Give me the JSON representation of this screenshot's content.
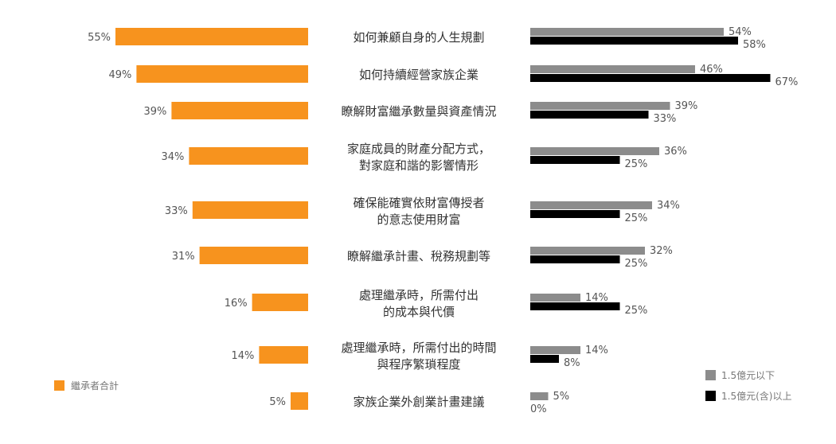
{
  "chart_data": {
    "type": "bar",
    "categories": [
      [
        "如何兼顧自身的人生規劃"
      ],
      [
        "如何持續經營家族企業"
      ],
      [
        "瞭解財富繼承數量與資產情況"
      ],
      [
        "家庭成員的財產分配方式，",
        "對家庭和諧的影響情形"
      ],
      [
        "確保能確實依財富傳授者",
        "的意志使用財富"
      ],
      [
        "瞭解繼承計畫、稅務規劃等"
      ],
      [
        "處理繼承時，所需付出",
        "的成本與代價"
      ],
      [
        "處理繼承時，所需付出的時間",
        "與程序繁瑣程度"
      ],
      [
        "家族企業外創業計畫建議"
      ]
    ],
    "series": [
      {
        "name": "繼承者合計",
        "color": "#F7931E",
        "values": [
          55,
          49,
          39,
          34,
          33,
          31,
          16,
          14,
          5
        ],
        "labels": [
          "55%",
          "49%",
          "39%",
          "34%",
          "33%",
          "31%",
          "16%",
          "14%",
          "5%"
        ]
      },
      {
        "name": "1.5億元以下",
        "color": "#8C8C8C",
        "values": [
          54,
          46,
          39,
          36,
          34,
          32,
          14,
          14,
          5
        ],
        "labels": [
          "54%",
          "46%",
          "39%",
          "36%",
          "34%",
          "32%",
          "14%",
          "14%",
          "5%"
        ]
      },
      {
        "name": "1.5億元(含)以上",
        "color": "#000000",
        "values": [
          58,
          67,
          33,
          25,
          25,
          25,
          25,
          8,
          0
        ],
        "labels": [
          "58%",
          "67%",
          "33%",
          "25%",
          "25%",
          "25%",
          "25%",
          "8%",
          "0%"
        ]
      }
    ],
    "legend": {
      "left": "繼承者合計",
      "right": [
        "1.5億元以下",
        "1.5億元(含)以上"
      ]
    }
  }
}
